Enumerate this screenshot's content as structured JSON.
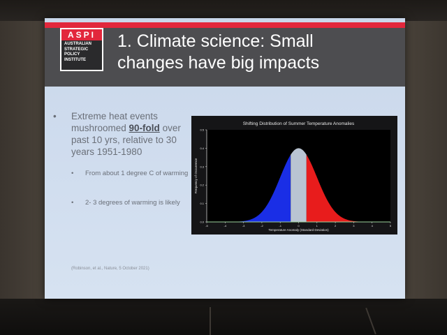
{
  "slide": {
    "logo": {
      "abbrev": "ASPI",
      "lines": [
        "AUSTRALIAN",
        "STRATEGIC",
        "POLICY",
        "INSTITUTE"
      ]
    },
    "title_line1": "1. Climate science:  Small",
    "title_line2": "changes have big impacts",
    "bullet_main": {
      "text_before": "Extreme heat events mushroomed ",
      "emphasis": "90-fold",
      "text_after": " over past 10 yrs, relative to 30 years 1951-1980"
    },
    "sub_bullets": [
      "From about 1 degree C of warming",
      "2- 3 degrees of warming is likely"
    ],
    "citation": "(Robinson, et al., Nature, 5 October 2021)",
    "bullet_glyph": "•",
    "colors": {
      "accent_red": "#e2273c",
      "header_gray": "#4d4d50",
      "blue_fill": "#1a2ee6",
      "red_fill": "#e81c1c",
      "center_fill": "#b9c4d2"
    }
  },
  "chart_data": {
    "type": "area",
    "title": "Shifting Distribution of Summer Temperature Anomalies",
    "xlabel": "Temperature Anomaly (Standard Deviation)",
    "ylabel": "Frequency of Occurrence",
    "xlim": [
      -5,
      5
    ],
    "ylim": [
      0,
      0.5
    ],
    "x_ticks": [
      "-5",
      "-4",
      "-3",
      "-2",
      "-1",
      "0",
      "1",
      "2",
      "3",
      "4",
      "5"
    ],
    "y_ticks": [
      "0.0",
      "0.1",
      "0.2",
      "0.3",
      "0.4",
      "0.5"
    ],
    "series": [
      {
        "name": "normal distribution",
        "mean": 0,
        "sd": 1,
        "peak": 0.4
      }
    ],
    "segments": [
      {
        "name": "cold",
        "from": -5,
        "to": -0.43,
        "color": "#1a2ee6"
      },
      {
        "name": "normal",
        "from": -0.43,
        "to": 0.43,
        "color": "#b9c4d2"
      },
      {
        "name": "hot",
        "from": 0.43,
        "to": 5,
        "color": "#e81c1c"
      }
    ]
  }
}
